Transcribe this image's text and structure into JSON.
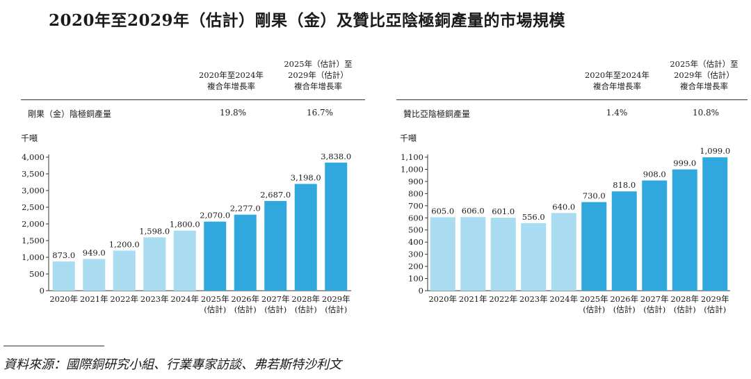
{
  "title": "2020年至2029年（估計）剛果（金）及贊比亞陰極銅產量的市場規模",
  "source": "資料來源：國際銅研究小組、行業專家訪談、弗若斯特沙利文",
  "colors": {
    "historical": "#a9dcf1",
    "forecast": "#30a8de",
    "axis": "#333333"
  },
  "panels": [
    {
      "cagr_header_1": [
        "2020年至2024年",
        "複合年增長率"
      ],
      "cagr_header_2": [
        "2025年（估計）至",
        "2029年（估計）",
        "複合年增長率"
      ],
      "row_label": "剛果（金）陰極銅產量",
      "cagr_1": "19.8%",
      "cagr_2": "16.7%",
      "unit": "千噸"
    },
    {
      "cagr_header_1": [
        "2020年至2024年",
        "複合年增長率"
      ],
      "cagr_header_2": [
        "2025年（估計）至",
        "2029年（估計）",
        "複合年增長率"
      ],
      "row_label": "贊比亞陰極銅產量",
      "cagr_1": "1.4%",
      "cagr_2": "10.8%",
      "unit": "千噸"
    }
  ],
  "chart_data": [
    {
      "type": "bar",
      "categories": [
        "2020年",
        "2021年",
        "2022年",
        "2023年",
        "2024年",
        "2025年 (估計)",
        "2026年 (估計)",
        "2027年 (估計)",
        "2028年 (估計)",
        "2029年 (估計)"
      ],
      "values": [
        873.0,
        949.0,
        1200.0,
        1598.0,
        1800.0,
        2070.0,
        2277.0,
        2687.0,
        3198.0,
        3838.0
      ],
      "value_labels": [
        "873.0",
        "949.0",
        "1,200.0",
        "1,598.0",
        "1,800.0",
        "2,070.0",
        "2,277.0",
        "2,687.0",
        "3,198.0",
        "3,838.0"
      ],
      "forecast_from_index": 5,
      "ylabel": "千噸",
      "ylim": [
        0,
        4000
      ],
      "yticks": [
        0,
        500,
        1000,
        1500,
        2000,
        2500,
        3000,
        3500,
        4000
      ],
      "ytick_labels": [
        "0",
        "500",
        "1,000",
        "1,500",
        "2,000",
        "2,500",
        "3,000",
        "3,500",
        "4,000"
      ],
      "grid": false
    },
    {
      "type": "bar",
      "categories": [
        "2020年",
        "2021年",
        "2022年",
        "2023年",
        "2024年",
        "2025年 (估計)",
        "2026年 (估計)",
        "2027年 (估計)",
        "2028年 (估計)",
        "2029年 (估計)"
      ],
      "values": [
        605.0,
        606.0,
        601.0,
        556.0,
        640.0,
        730.0,
        818.0,
        908.0,
        999.0,
        1099.0
      ],
      "value_labels": [
        "605.0",
        "606.0",
        "601.0",
        "556.0",
        "640.0",
        "730.0",
        "818.0",
        "908.0",
        "999.0",
        "1,099.0"
      ],
      "forecast_from_index": 5,
      "ylabel": "千噸",
      "ylim": [
        0,
        1100
      ],
      "yticks": [
        0,
        100,
        200,
        300,
        400,
        500,
        600,
        700,
        800,
        900,
        1000,
        1100
      ],
      "ytick_labels": [
        "0",
        "100",
        "200",
        "300",
        "400",
        "500",
        "600",
        "700",
        "800",
        "900",
        "1,000",
        "1,100"
      ],
      "grid": false
    }
  ]
}
